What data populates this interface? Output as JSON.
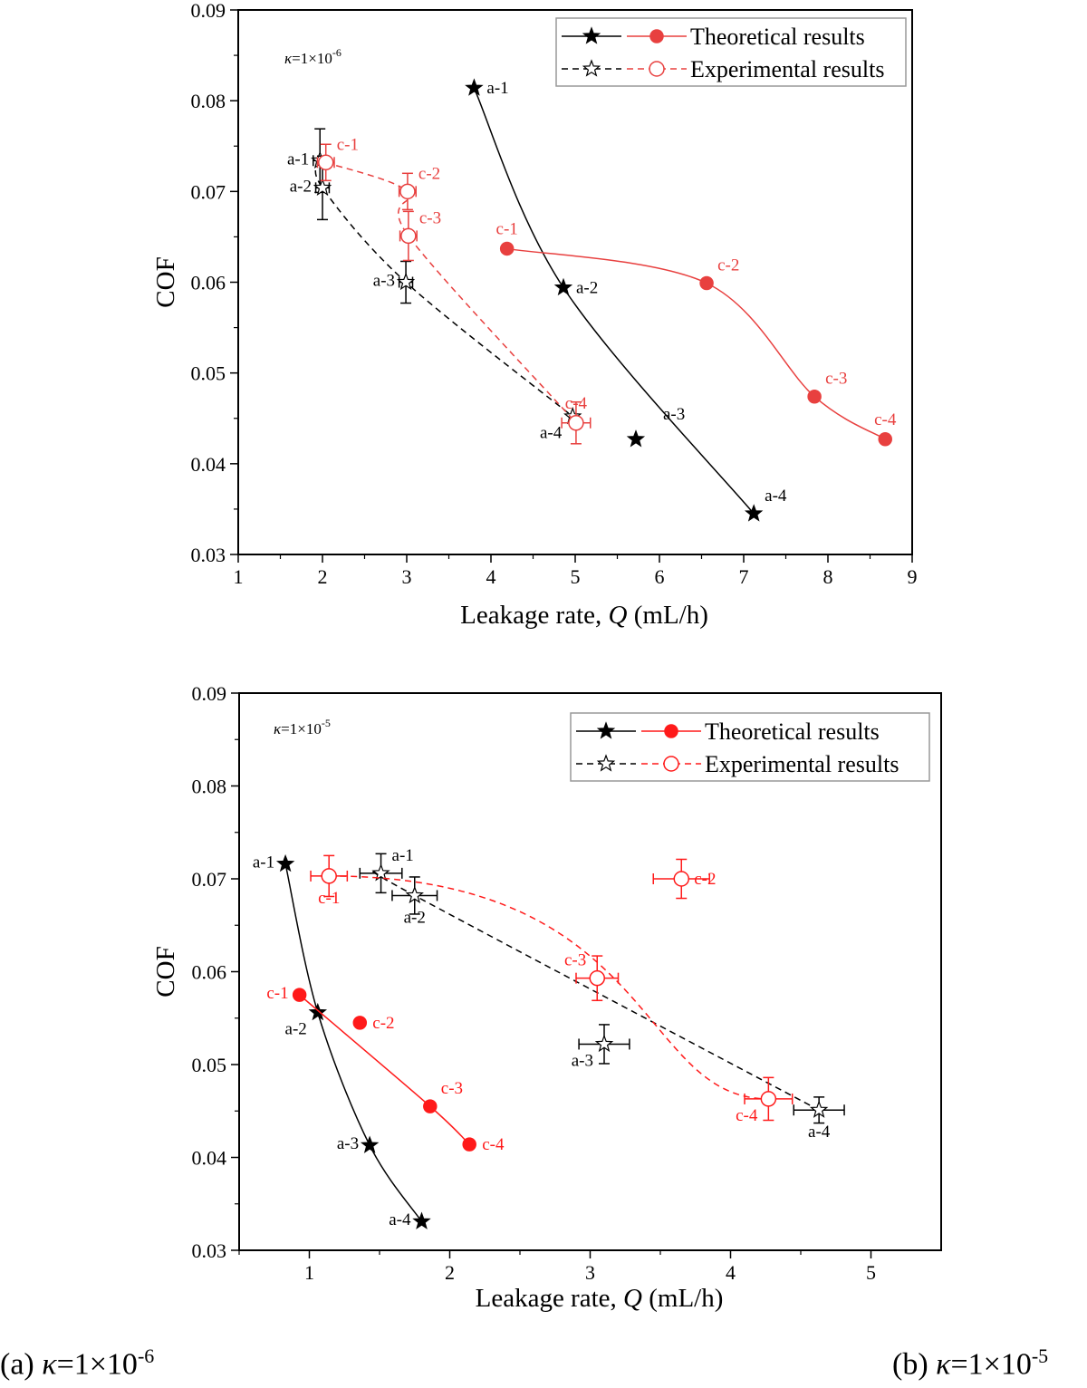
{
  "colors": {
    "black": "#000000",
    "red_a": "#e8403f",
    "red_b": "#ff1a1a",
    "legend_border": "#999999"
  },
  "captions": [
    {
      "prefix": "(a) ",
      "kappa": "κ",
      "text": "=1×10",
      "exp": "-6"
    },
    {
      "prefix": "(b) ",
      "kappa": "κ",
      "text": "=1×10",
      "exp": "-5"
    }
  ],
  "chart_data": [
    {
      "type": "scatter",
      "xlabel": "Leakage rate, Q (mL/h)",
      "ylabel": "COF",
      "xlim": [
        1,
        9
      ],
      "ylim": [
        0.03,
        0.09
      ],
      "xticks": [
        1,
        2,
        3,
        4,
        5,
        6,
        7,
        8,
        9
      ],
      "yticks": [
        "0.03",
        "0.04",
        "0.05",
        "0.06",
        "0.07",
        "0.08",
        "0.09"
      ],
      "grid": false,
      "annotation": {
        "kappa": "κ",
        "text": "=1×10",
        "exp": "-6"
      },
      "legend": {
        "placement": "top-right",
        "entries": [
          "Theoretical results",
          "Experimental results"
        ]
      },
      "series": [
        {
          "group": "Theoretical results",
          "color": "#000000",
          "marker": "star-filled",
          "line": "solid",
          "fit": "spline",
          "points": [
            {
              "label": "a-1",
              "x": 3.8,
              "y": 0.0814,
              "label_pos": "right"
            },
            {
              "label": "a-2",
              "x": 4.86,
              "y": 0.0594,
              "label_pos": "right"
            },
            {
              "label": "a-3",
              "x": 5.72,
              "y": 0.0427,
              "label_pos": "far-upper-right",
              "off_curve": true
            },
            {
              "label": "a-4",
              "x": 7.12,
              "y": 0.0345,
              "label_pos": "upper-right"
            }
          ]
        },
        {
          "group": "Theoretical results",
          "color": "#e8403f",
          "marker": "circle-filled",
          "line": "solid",
          "fit": "spline",
          "points": [
            {
              "label": "c-1",
              "x": 4.19,
              "y": 0.0637,
              "label_pos": "above"
            },
            {
              "label": "c-2",
              "x": 6.56,
              "y": 0.0599,
              "label_pos": "upper-right"
            },
            {
              "label": "c-3",
              "x": 7.84,
              "y": 0.0474,
              "label_pos": "upper-right"
            },
            {
              "label": "c-4",
              "x": 8.68,
              "y": 0.0427,
              "label_pos": "above"
            }
          ]
        },
        {
          "group": "Experimental results",
          "color": "#000000",
          "marker": "star-open",
          "line": "dashed",
          "fit": "spline",
          "points": [
            {
              "label": "a-1",
              "x": 1.97,
              "y": 0.0734,
              "xerr": 0.08,
              "yerr": 0.0035,
              "label_pos": "left"
            },
            {
              "label": "a-2",
              "x": 2.0,
              "y": 0.0704,
              "xerr": 0.08,
              "yerr": 0.0035,
              "label_pos": "left"
            },
            {
              "label": "a-3",
              "x": 2.99,
              "y": 0.06,
              "xerr": 0.08,
              "yerr": 0.0023,
              "label_pos": "left"
            },
            {
              "label": "a-4",
              "x": 4.97,
              "y": 0.0452,
              "label_pos": "lower-left"
            }
          ]
        },
        {
          "group": "Experimental results",
          "color": "#e8403f",
          "marker": "circle-open",
          "line": "dashed",
          "fit": "spline",
          "points": [
            {
              "label": "c-1",
              "x": 2.04,
              "y": 0.0732,
              "xerr": 0.1,
              "yerr": 0.002,
              "label_pos": "upper-right"
            },
            {
              "label": "c-2",
              "x": 3.01,
              "y": 0.07,
              "xerr": 0.1,
              "yerr": 0.002,
              "label_pos": "upper-right"
            },
            {
              "label": "c-3",
              "x": 3.02,
              "y": 0.0651,
              "xerr": 0.1,
              "yerr": 0.0027,
              "label_pos": "upper-right"
            },
            {
              "label": "c-4",
              "x": 5.01,
              "y": 0.0445,
              "xerr": 0.17,
              "yerr": 0.0023,
              "label_pos": "above"
            }
          ]
        }
      ]
    },
    {
      "type": "scatter",
      "xlabel": "Leakage rate, Q (mL/h)",
      "ylabel": "COF",
      "xlim": [
        0.5,
        5.5
      ],
      "ylim": [
        0.03,
        0.09
      ],
      "xticks": [
        1,
        2,
        3,
        4,
        5
      ],
      "yticks": [
        "0.03",
        "0.04",
        "0.05",
        "0.06",
        "0.07",
        "0.08",
        "0.09"
      ],
      "grid": false,
      "annotation": {
        "kappa": "κ",
        "text": "=1×10",
        "exp": "-5"
      },
      "legend": {
        "placement": "top-right",
        "entries": [
          "Theoretical results",
          "Experimental results"
        ]
      },
      "series": [
        {
          "group": "Theoretical results",
          "color": "#000000",
          "marker": "star-filled",
          "line": "solid",
          "fit": "spline",
          "points": [
            {
              "label": "a-1",
              "x": 0.83,
              "y": 0.0716,
              "label_pos": "left"
            },
            {
              "label": "a-2",
              "x": 1.06,
              "y": 0.0556,
              "label_pos": "lower-left"
            },
            {
              "label": "a-3",
              "x": 1.43,
              "y": 0.0413,
              "label_pos": "left"
            },
            {
              "label": "a-4",
              "x": 1.8,
              "y": 0.0331,
              "label_pos": "left"
            }
          ]
        },
        {
          "group": "Theoretical results",
          "color": "#ff1a1a",
          "marker": "circle-filled",
          "line": "solid",
          "fit": "spline",
          "points": [
            {
              "label": "c-1",
              "x": 0.93,
              "y": 0.0575,
              "label_pos": "left"
            },
            {
              "label": "c-2",
              "x": 1.36,
              "y": 0.0545,
              "label_pos": "right",
              "off_curve": true
            },
            {
              "label": "c-3",
              "x": 1.86,
              "y": 0.0455,
              "label_pos": "upper-right"
            },
            {
              "label": "c-4",
              "x": 2.14,
              "y": 0.0414,
              "label_pos": "right"
            }
          ]
        },
        {
          "group": "Experimental results",
          "color": "#000000",
          "marker": "star-open",
          "line": "dashed",
          "fit": "spline",
          "points": [
            {
              "label": "a-1",
              "x": 1.51,
              "y": 0.0706,
              "xerr": 0.15,
              "yerr": 0.0021,
              "label_pos": "upper-right"
            },
            {
              "label": "a-2",
              "x": 1.75,
              "y": 0.0682,
              "xerr": 0.16,
              "yerr": 0.002,
              "label_pos": "below"
            },
            {
              "label": "a-3",
              "x": 3.1,
              "y": 0.0522,
              "xerr": 0.18,
              "yerr": 0.0021,
              "label_pos": "lower-left",
              "off_curve": true
            },
            {
              "label": "a-4",
              "x": 4.63,
              "y": 0.0451,
              "xerr": 0.18,
              "yerr": 0.0014,
              "label_pos": "below"
            }
          ]
        },
        {
          "group": "Experimental results",
          "color": "#ff1a1a",
          "marker": "circle-open",
          "line": "dashed",
          "fit": "sigmoid",
          "points": [
            {
              "label": "c-1",
              "x": 1.14,
              "y": 0.0703,
              "xerr": 0.13,
              "yerr": 0.0022,
              "label_pos": "below"
            },
            {
              "label": "c-2",
              "x": 3.65,
              "y": 0.07,
              "xerr": 0.2,
              "yerr": 0.0021,
              "label_pos": "right",
              "off_curve": true
            },
            {
              "label": "c-3",
              "x": 3.05,
              "y": 0.0593,
              "xerr": 0.15,
              "yerr": 0.0024,
              "label_pos": "upper-left",
              "off_curve": true
            },
            {
              "label": "c-4",
              "x": 4.27,
              "y": 0.0463,
              "xerr": 0.17,
              "yerr": 0.0023,
              "label_pos": "lower-left"
            }
          ]
        }
      ]
    }
  ]
}
